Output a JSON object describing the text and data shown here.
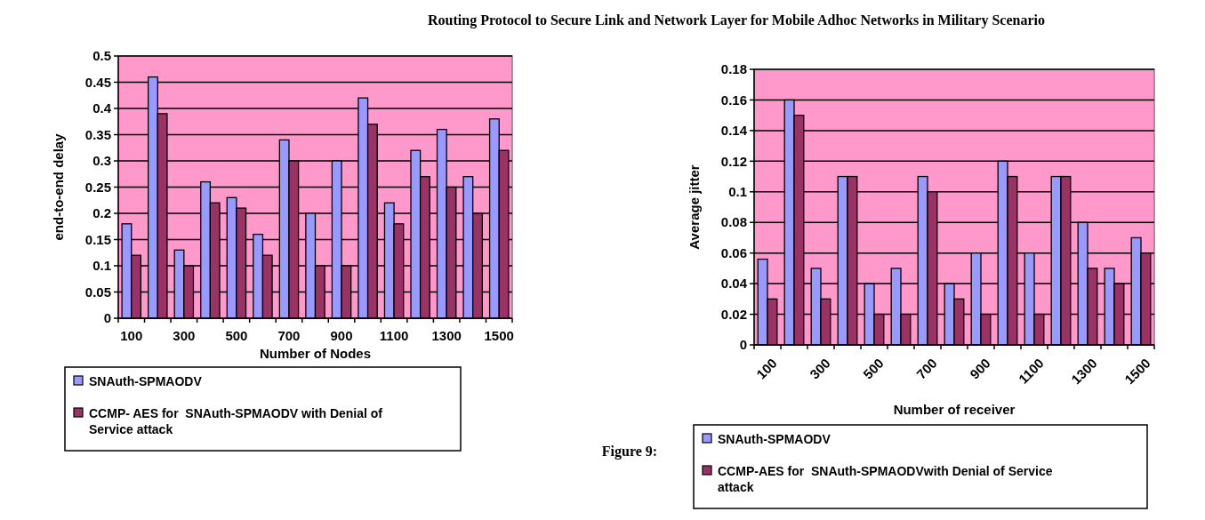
{
  "chart_data": [
    {
      "type": "bar",
      "annotations": [
        "Routing Protocol to Secure Link and Network Layer for Mobile Adhoc Networks in Military Scenario"
      ],
      "xlabel": "Number of Nodes",
      "ylabel": "end-to-end delay",
      "categories": [
        "100",
        null,
        "300",
        null,
        "500",
        null,
        "700",
        null,
        "900",
        null,
        "1100",
        null,
        "1300",
        null,
        "1500"
      ],
      "series": [
        {
          "name": "SNAuth-SPMAODV",
          "color": "#9999ff",
          "values": [
            0.18,
            0.46,
            0.13,
            0.26,
            0.23,
            0.16,
            0.34,
            0.2,
            0.3,
            0.42,
            0.22,
            0.32,
            0.36,
            0.27,
            0.38
          ]
        },
        {
          "name": "CCMP- AES for  SNAuth-SPMAODV with Denial of Service attack",
          "color": "#993366",
          "values": [
            0.12,
            0.39,
            0.1,
            0.22,
            0.21,
            0.12,
            0.3,
            0.1,
            0.1,
            0.37,
            0.18,
            0.27,
            0.25,
            0.2,
            0.32
          ]
        }
      ],
      "ylim": [
        0,
        0.5
      ],
      "yticks": [
        0,
        0.05,
        0.1,
        0.15,
        0.2,
        0.25,
        0.3,
        0.35,
        0.4,
        0.45,
        0.5
      ],
      "grid": "y",
      "legend": "bottom"
    },
    {
      "type": "bar",
      "annotations": [
        "Figure 9:"
      ],
      "xlabel": "Number of receiver",
      "ylabel": "Average jitter",
      "categories": [
        "100",
        null,
        "300",
        null,
        "500",
        null,
        "700",
        null,
        "900",
        null,
        "1100",
        null,
        "1300",
        null,
        "1500"
      ],
      "series": [
        {
          "name": "SNAuth-SPMAODV",
          "color": "#9999ff",
          "values": [
            0.056,
            0.16,
            0.05,
            0.11,
            0.04,
            0.05,
            0.11,
            0.04,
            0.06,
            0.12,
            0.06,
            0.11,
            0.08,
            0.05,
            0.07
          ]
        },
        {
          "name": "CCMP-AES for  SNAuth-SPMAODVwith Denial of Service attack",
          "color": "#993366",
          "values": [
            0.03,
            0.15,
            0.03,
            0.11,
            0.02,
            0.02,
            0.1,
            0.03,
            0.02,
            0.11,
            0.02,
            0.11,
            0.05,
            0.04,
            0.06
          ]
        }
      ],
      "ylim": [
        0,
        0.18
      ],
      "yticks": [
        0,
        0.02,
        0.04,
        0.06,
        0.08,
        0.1,
        0.12,
        0.14,
        0.16,
        0.18
      ],
      "grid": "y",
      "legend": "bottom"
    }
  ]
}
